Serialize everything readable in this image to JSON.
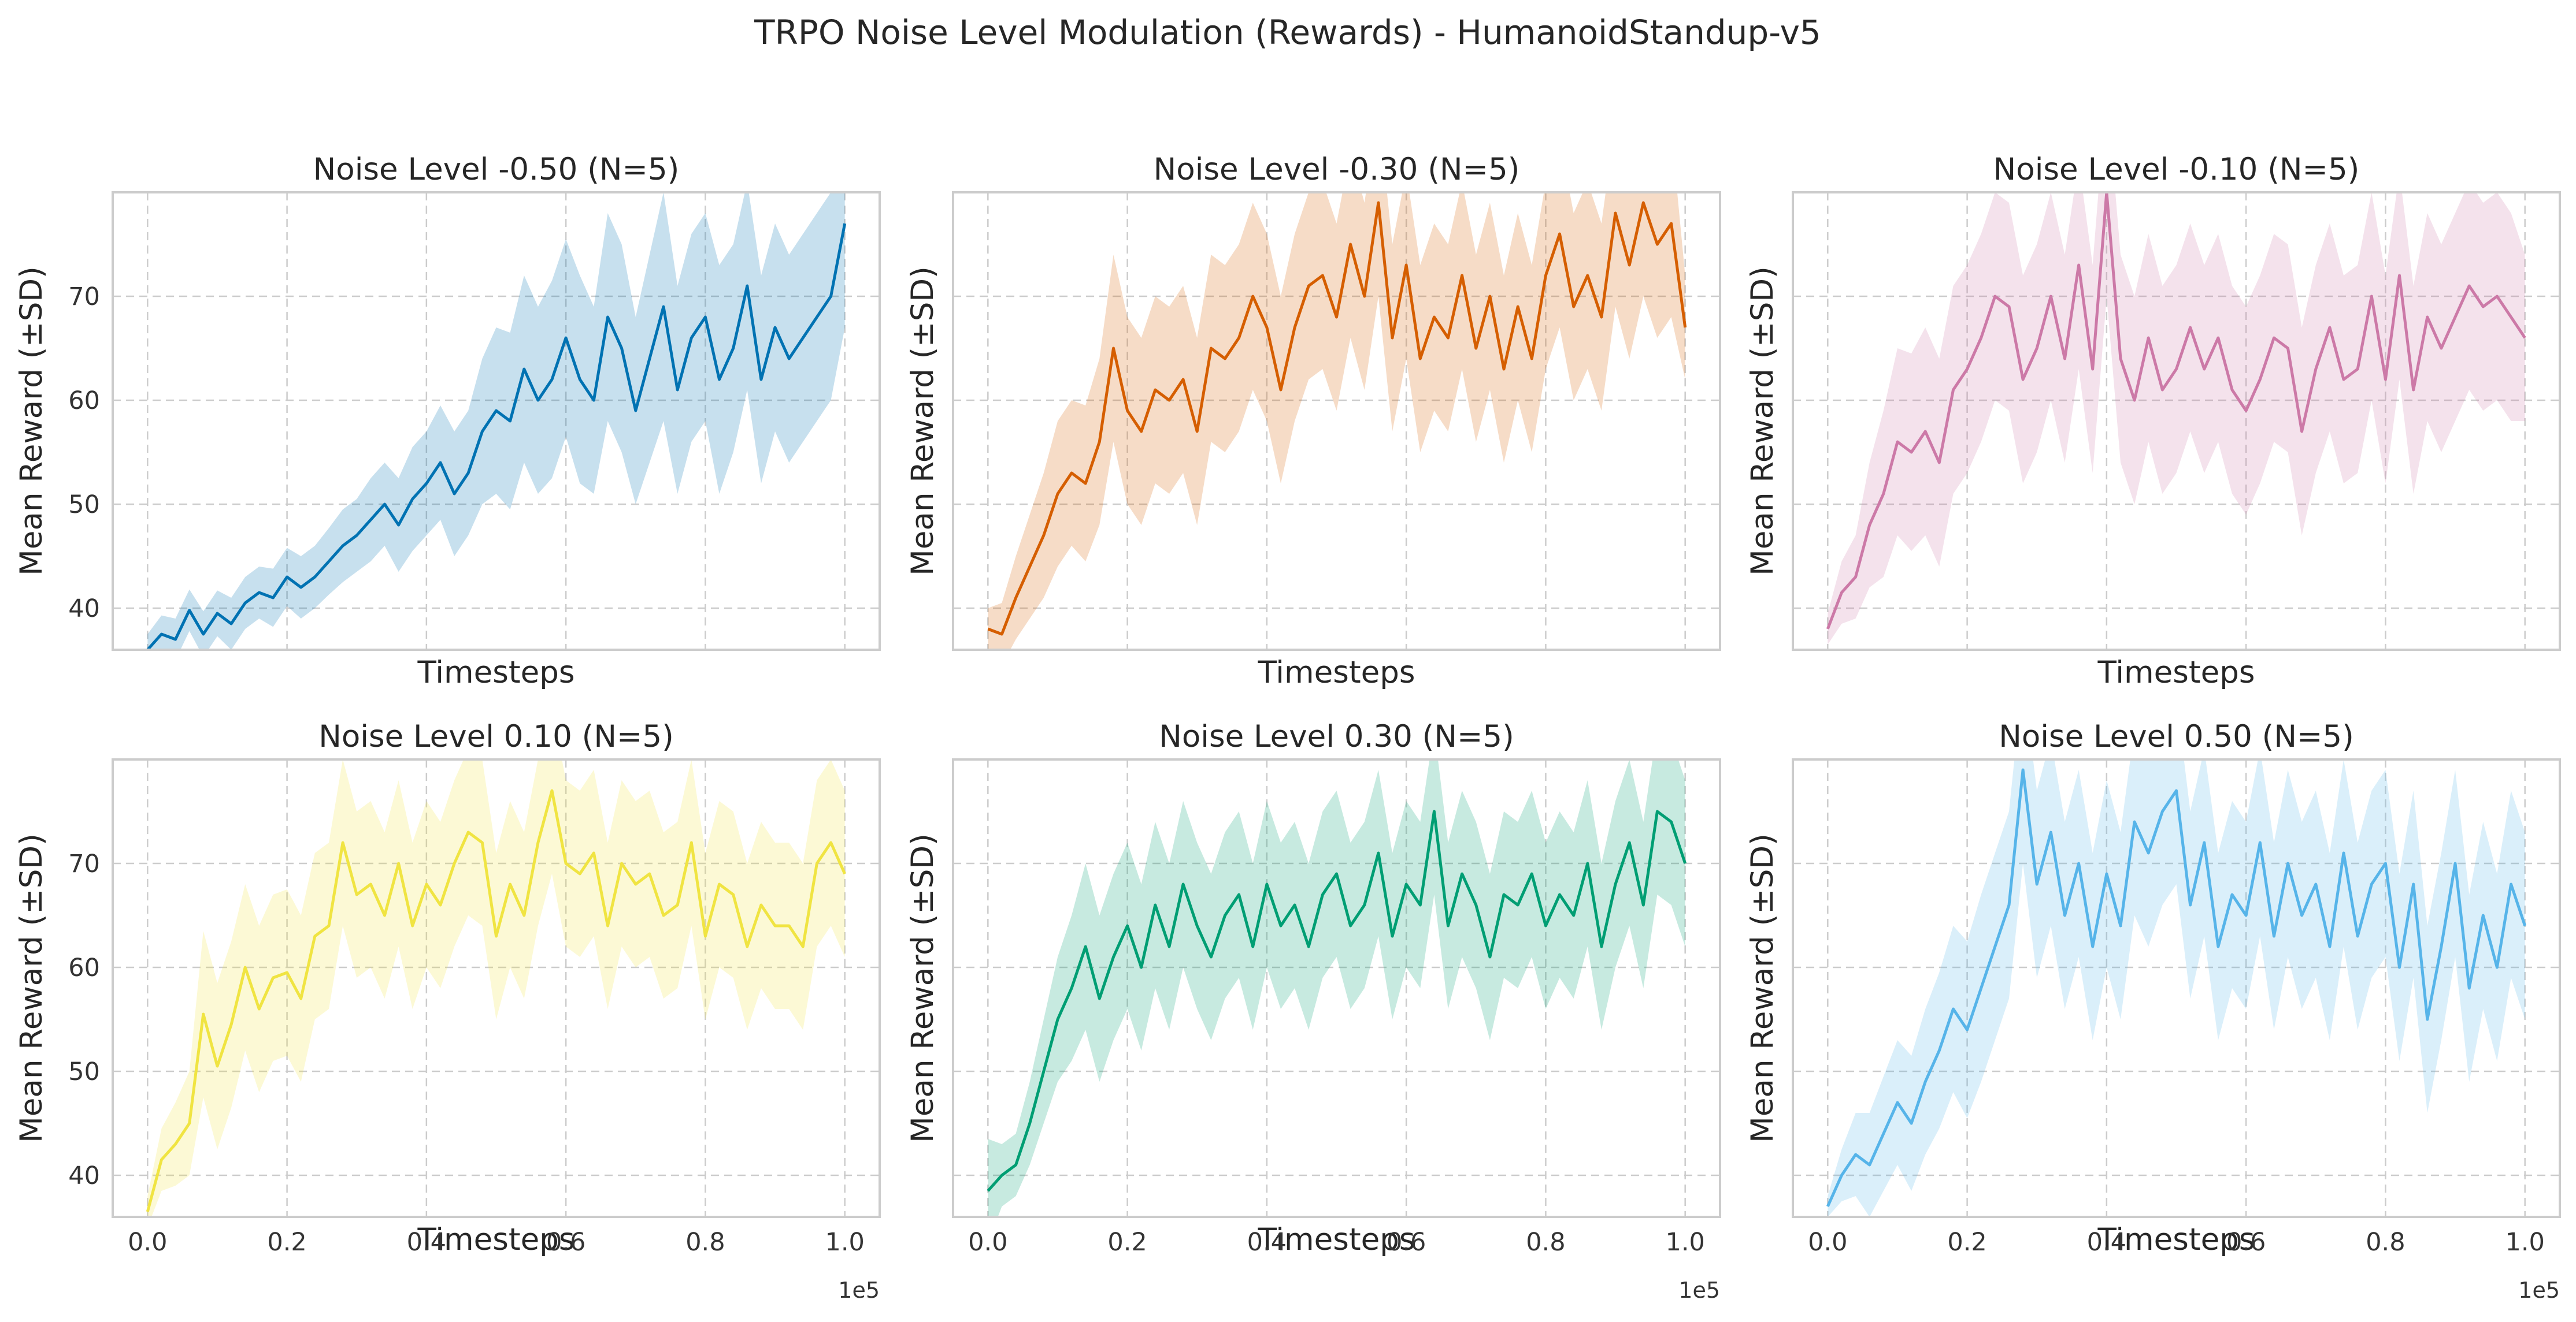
{
  "chart_data": {
    "type": "line",
    "title": "TRPO Noise Level Modulation (Rewards) - HumanoidStandup-v5",
    "x_tick_labels": [
      "0.0",
      "0.2",
      "0.4",
      "0.6",
      "0.8",
      "1.0"
    ],
    "x_offset_label": "1e5",
    "xlim": [
      -5000,
      105000
    ],
    "ylim": [
      36,
      80
    ],
    "y_ticks": [
      40,
      50,
      60,
      70
    ],
    "grid": true,
    "band": "±SD",
    "subplots": [
      {
        "title": "Noise Level -0.50 (N=5)",
        "xlabel": "Timesteps",
        "ylabel": "Mean Reward (±SD)",
        "color": "#0072b2",
        "x": [
          0,
          2000,
          4000,
          6000,
          8000,
          10000,
          12000,
          14000,
          16000,
          18000,
          20000,
          22000,
          24000,
          26000,
          28000,
          30000,
          32000,
          34000,
          36000,
          38000,
          40000,
          42000,
          44000,
          46000,
          48000,
          50000,
          52000,
          54000,
          56000,
          58000,
          60000,
          62000,
          64000,
          66000,
          68000,
          70000,
          72000,
          74000,
          76000,
          78000,
          80000,
          82000,
          84000,
          86000,
          88000,
          90000,
          92000,
          94000,
          96000,
          98000,
          100000
        ],
        "mean": [
          36.0,
          37.5,
          37.0,
          39.8,
          37.5,
          39.5,
          38.5,
          40.5,
          41.5,
          41.0,
          43.0,
          42.0,
          43.0,
          44.5,
          46.0,
          47.0,
          48.5,
          50.0,
          48.0,
          50.5,
          52.0,
          54.0,
          51.0,
          53.0,
          57.0,
          59.0,
          58.0,
          63.0,
          60.0,
          62.0,
          66.0,
          62.0,
          60.0,
          68.0,
          65.0,
          59.0,
          64.0,
          69.0,
          61.0,
          66.0,
          68.0,
          62.0,
          65.0,
          71.0,
          62.0,
          67.0,
          64.0,
          66.0,
          68.0,
          70.0,
          77.0
        ],
        "sd": [
          1.5,
          1.8,
          2.0,
          2.0,
          2.2,
          2.2,
          2.5,
          2.5,
          2.5,
          2.8,
          2.8,
          3.0,
          3.0,
          3.2,
          3.5,
          3.5,
          4.0,
          4.0,
          4.5,
          5.0,
          5.0,
          5.5,
          6.0,
          6.0,
          7.0,
          8.0,
          8.5,
          9.0,
          9.0,
          9.5,
          9.5,
          10.0,
          9.0,
          10.0,
          10.0,
          9.0,
          10.0,
          11.0,
          10.0,
          10.0,
          10.0,
          11.0,
          10.0,
          10.0,
          10.0,
          10.0,
          10.0,
          10.0,
          10.0,
          10.0,
          10.0
        ]
      },
      {
        "title": "Noise Level -0.30 (N=5)",
        "xlabel": "Timesteps",
        "ylabel": "Mean Reward (±SD)",
        "color": "#d55e00",
        "x": [
          0,
          2000,
          4000,
          6000,
          8000,
          10000,
          12000,
          14000,
          16000,
          18000,
          20000,
          22000,
          24000,
          26000,
          28000,
          30000,
          32000,
          34000,
          36000,
          38000,
          40000,
          42000,
          44000,
          46000,
          48000,
          50000,
          52000,
          54000,
          56000,
          58000,
          60000,
          62000,
          64000,
          66000,
          68000,
          70000,
          72000,
          74000,
          76000,
          78000,
          80000,
          82000,
          84000,
          86000,
          88000,
          90000,
          92000,
          94000,
          96000,
          98000,
          100000
        ],
        "mean": [
          38.0,
          37.5,
          41.0,
          44.0,
          47.0,
          51.0,
          53.0,
          52.0,
          56.0,
          65.0,
          59.0,
          57.0,
          61.0,
          60.0,
          62.0,
          57.0,
          65.0,
          64.0,
          66.0,
          70.0,
          67.0,
          61.0,
          67.0,
          71.0,
          72.0,
          68.0,
          75.0,
          70.0,
          79.0,
          66.0,
          73.0,
          64.0,
          68.0,
          66.0,
          72.0,
          65.0,
          70.0,
          63.0,
          69.0,
          64.0,
          72.0,
          76.0,
          69.0,
          72.0,
          68.0,
          78.0,
          73.0,
          79.0,
          75.0,
          77.0,
          67.0
        ],
        "sd": [
          2.0,
          3.0,
          4.0,
          5.0,
          6.0,
          7.0,
          7.0,
          7.5,
          8.0,
          9.0,
          9.0,
          9.0,
          9.0,
          9.0,
          9.0,
          9.0,
          9.0,
          9.0,
          9.0,
          9.0,
          9.0,
          9.0,
          9.0,
          9.0,
          9.0,
          9.0,
          9.0,
          9.0,
          9.0,
          9.0,
          9.0,
          9.0,
          9.0,
          9.0,
          9.0,
          9.0,
          9.0,
          9.0,
          9.0,
          9.0,
          9.0,
          9.0,
          9.0,
          9.0,
          9.0,
          9.0,
          9.0,
          9.0,
          9.0,
          9.0,
          5.0
        ]
      },
      {
        "title": "Noise Level -0.10 (N=5)",
        "xlabel": "Timesteps",
        "ylabel": "Mean Reward (±SD)",
        "color": "#cc79a7",
        "x": [
          0,
          2000,
          4000,
          6000,
          8000,
          10000,
          12000,
          14000,
          16000,
          18000,
          20000,
          22000,
          24000,
          26000,
          28000,
          30000,
          32000,
          34000,
          36000,
          38000,
          40000,
          42000,
          44000,
          46000,
          48000,
          50000,
          52000,
          54000,
          56000,
          58000,
          60000,
          62000,
          64000,
          66000,
          68000,
          70000,
          72000,
          74000,
          76000,
          78000,
          80000,
          82000,
          84000,
          86000,
          88000,
          90000,
          92000,
          94000,
          96000,
          98000,
          100000
        ],
        "mean": [
          38.0,
          41.5,
          43.0,
          48.0,
          51.0,
          56.0,
          55.0,
          57.0,
          54.0,
          61.0,
          63.0,
          66.0,
          70.0,
          69.0,
          62.0,
          65.0,
          70.0,
          64.0,
          73.0,
          63.0,
          80.0,
          64.0,
          60.0,
          66.0,
          61.0,
          63.0,
          67.0,
          63.0,
          66.0,
          61.0,
          59.0,
          62.0,
          66.0,
          65.0,
          57.0,
          63.0,
          67.0,
          62.0,
          63.0,
          70.0,
          62.0,
          72.0,
          61.0,
          68.0,
          65.0,
          68.0,
          71.0,
          69.0,
          70.0,
          68.0,
          66.0
        ],
        "sd": [
          1.5,
          3.0,
          4.0,
          6.0,
          8.0,
          9.0,
          9.5,
          10.0,
          10.0,
          10.0,
          10.0,
          10.0,
          10.0,
          10.0,
          10.0,
          10.0,
          10.0,
          10.0,
          10.0,
          10.0,
          10.0,
          10.0,
          10.0,
          10.0,
          10.0,
          10.0,
          10.0,
          10.0,
          10.0,
          10.0,
          10.0,
          10.0,
          10.0,
          10.0,
          10.0,
          10.0,
          10.0,
          10.0,
          10.0,
          10.0,
          10.0,
          10.0,
          10.0,
          10.0,
          10.0,
          10.0,
          10.0,
          10.0,
          10.0,
          10.0,
          8.0
        ]
      },
      {
        "title": "Noise Level 0.10 (N=5)",
        "xlabel": "Timesteps",
        "ylabel": "Mean Reward (±SD)",
        "color": "#f0e442",
        "x": [
          0,
          2000,
          4000,
          6000,
          8000,
          10000,
          12000,
          14000,
          16000,
          18000,
          20000,
          22000,
          24000,
          26000,
          28000,
          30000,
          32000,
          34000,
          36000,
          38000,
          40000,
          42000,
          44000,
          46000,
          48000,
          50000,
          52000,
          54000,
          56000,
          58000,
          60000,
          62000,
          64000,
          66000,
          68000,
          70000,
          72000,
          74000,
          76000,
          78000,
          80000,
          82000,
          84000,
          86000,
          88000,
          90000,
          92000,
          94000,
          96000,
          98000,
          100000
        ],
        "mean": [
          36.5,
          41.5,
          43.0,
          45.0,
          55.5,
          50.5,
          54.5,
          60.0,
          56.0,
          59.0,
          59.5,
          57.0,
          63.0,
          64.0,
          72.0,
          67.0,
          68.0,
          65.0,
          70.0,
          64.0,
          68.0,
          66.0,
          70.0,
          73.0,
          72.0,
          63.0,
          68.0,
          65.0,
          72.0,
          77.0,
          70.0,
          69.0,
          71.0,
          64.0,
          70.0,
          68.0,
          69.0,
          65.0,
          66.0,
          72.0,
          63.0,
          68.0,
          67.0,
          62.0,
          66.0,
          64.0,
          64.0,
          62.0,
          70.0,
          72.0,
          69.0
        ],
        "sd": [
          1.5,
          3.0,
          4.0,
          5.0,
          8.0,
          8.0,
          8.0,
          8.0,
          8.0,
          8.0,
          8.0,
          8.0,
          8.0,
          8.0,
          8.0,
          8.0,
          8.0,
          8.0,
          8.0,
          8.0,
          8.0,
          8.0,
          8.0,
          8.0,
          8.0,
          8.0,
          8.0,
          8.0,
          8.0,
          8.0,
          8.0,
          8.0,
          8.0,
          8.0,
          8.0,
          8.0,
          8.0,
          8.0,
          8.0,
          8.0,
          8.0,
          8.0,
          8.0,
          8.0,
          8.0,
          8.0,
          8.0,
          8.0,
          8.0,
          8.0,
          8.0
        ]
      },
      {
        "title": "Noise Level 0.30 (N=5)",
        "xlabel": "Timesteps",
        "ylabel": "Mean Reward (±SD)",
        "color": "#009e73",
        "x": [
          0,
          2000,
          4000,
          6000,
          8000,
          10000,
          12000,
          14000,
          16000,
          18000,
          20000,
          22000,
          24000,
          26000,
          28000,
          30000,
          32000,
          34000,
          36000,
          38000,
          40000,
          42000,
          44000,
          46000,
          48000,
          50000,
          52000,
          54000,
          56000,
          58000,
          60000,
          62000,
          64000,
          66000,
          68000,
          70000,
          72000,
          74000,
          76000,
          78000,
          80000,
          82000,
          84000,
          86000,
          88000,
          90000,
          92000,
          94000,
          96000,
          98000,
          100000
        ],
        "mean": [
          38.5,
          40.0,
          41.0,
          45.0,
          50.0,
          55.0,
          58.0,
          62.0,
          57.0,
          61.0,
          64.0,
          60.0,
          66.0,
          62.0,
          68.0,
          64.0,
          61.0,
          65.0,
          67.0,
          62.0,
          68.0,
          64.0,
          66.0,
          62.0,
          67.0,
          69.0,
          64.0,
          66.0,
          71.0,
          63.0,
          68.0,
          66.0,
          75.0,
          64.0,
          69.0,
          66.0,
          61.0,
          67.0,
          66.0,
          69.0,
          64.0,
          67.0,
          65.0,
          70.0,
          62.0,
          68.0,
          72.0,
          66.0,
          75.0,
          74.0,
          70.0
        ],
        "sd": [
          5.0,
          3.0,
          3.0,
          4.0,
          5.0,
          6.0,
          7.0,
          8.0,
          8.0,
          8.0,
          8.0,
          8.0,
          8.0,
          8.0,
          8.0,
          8.0,
          8.0,
          8.0,
          8.0,
          8.0,
          8.0,
          8.0,
          8.0,
          8.0,
          8.0,
          8.0,
          8.0,
          8.0,
          8.0,
          8.0,
          8.0,
          8.0,
          8.0,
          8.0,
          8.0,
          8.0,
          8.0,
          8.0,
          8.0,
          8.0,
          8.0,
          8.0,
          8.0,
          8.0,
          8.0,
          8.0,
          8.0,
          8.0,
          8.0,
          8.0,
          8.0
        ]
      },
      {
        "title": "Noise Level 0.50 (N=5)",
        "xlabel": "Timesteps",
        "ylabel": "Mean Reward (±SD)",
        "color": "#56b4e9",
        "x": [
          0,
          2000,
          4000,
          6000,
          8000,
          10000,
          12000,
          14000,
          16000,
          18000,
          20000,
          22000,
          24000,
          26000,
          28000,
          30000,
          32000,
          34000,
          36000,
          38000,
          40000,
          42000,
          44000,
          46000,
          48000,
          50000,
          52000,
          54000,
          56000,
          58000,
          60000,
          62000,
          64000,
          66000,
          68000,
          70000,
          72000,
          74000,
          76000,
          78000,
          80000,
          82000,
          84000,
          86000,
          88000,
          90000,
          92000,
          94000,
          96000,
          98000,
          100000
        ],
        "mean": [
          37.0,
          40.0,
          42.0,
          41.0,
          44.0,
          47.0,
          45.0,
          49.0,
          52.0,
          56.0,
          54.0,
          58.0,
          62.0,
          66.0,
          79.0,
          68.0,
          73.0,
          65.0,
          70.0,
          62.0,
          69.0,
          64.0,
          74.0,
          71.0,
          75.0,
          77.0,
          66.0,
          72.0,
          62.0,
          67.0,
          65.0,
          72.0,
          63.0,
          70.0,
          65.0,
          68.0,
          62.0,
          71.0,
          63.0,
          68.0,
          70.0,
          60.0,
          68.0,
          55.0,
          62.0,
          70.0,
          58.0,
          65.0,
          60.0,
          68.0,
          64.0
        ],
        "sd": [
          1.0,
          2.5,
          4.0,
          5.0,
          5.5,
          6.0,
          6.5,
          7.0,
          7.5,
          8.0,
          8.5,
          9.0,
          9.0,
          9.0,
          9.0,
          9.0,
          9.0,
          9.0,
          9.0,
          9.0,
          9.0,
          9.0,
          9.0,
          9.0,
          9.0,
          9.0,
          9.0,
          9.0,
          9.0,
          9.0,
          9.0,
          9.0,
          9.0,
          9.0,
          9.0,
          9.0,
          9.0,
          9.0,
          9.0,
          9.0,
          9.0,
          9.0,
          9.0,
          9.0,
          9.0,
          9.0,
          9.0,
          9.0,
          9.0,
          9.0,
          9.0
        ]
      }
    ]
  }
}
